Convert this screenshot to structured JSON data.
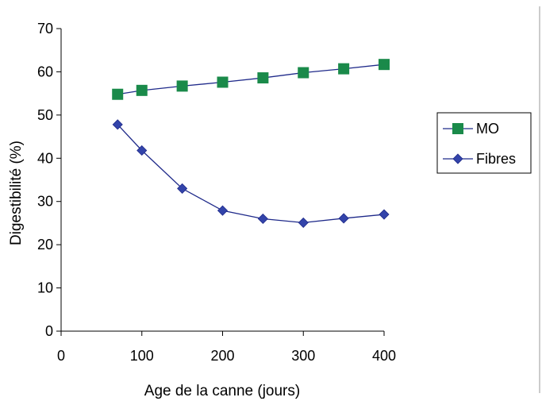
{
  "chart_data": {
    "type": "line",
    "xlabel": "Age de la canne (jours)",
    "ylabel": "Digestibilité (%)",
    "xlim": [
      0,
      400
    ],
    "ylim": [
      0,
      70
    ],
    "xticks": [
      0,
      100,
      200,
      300,
      400
    ],
    "yticks": [
      0,
      10,
      20,
      30,
      40,
      50,
      60,
      70
    ],
    "grid": false,
    "legend_position": "right",
    "series": [
      {
        "name": "MO",
        "marker": "square",
        "color": "#1a8a4a",
        "line_color": "#1f2a8a",
        "x": [
          70,
          100,
          150,
          200,
          250,
          300,
          350,
          400
        ],
        "y": [
          54.8,
          55.7,
          56.7,
          57.6,
          58.6,
          59.8,
          60.7,
          61.7
        ]
      },
      {
        "name": "Fibres",
        "marker": "diamond",
        "color": "#3344aa",
        "line_color": "#1f2a8a",
        "x": [
          70,
          100,
          150,
          200,
          250,
          300,
          350,
          400
        ],
        "y": [
          47.8,
          41.8,
          33.0,
          27.9,
          26.0,
          25.1,
          26.1,
          27.0
        ]
      }
    ]
  }
}
